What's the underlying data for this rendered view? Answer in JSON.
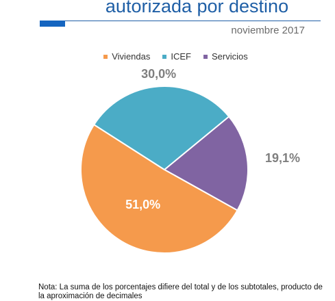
{
  "header": {
    "title": "autorizada por destino",
    "subtitle": "noviembre 2017"
  },
  "chart_data": {
    "type": "pie",
    "categories": [
      "Viviendas",
      "ICEF",
      "Servicios"
    ],
    "values": [
      51.0,
      30.0,
      19.1
    ],
    "value_labels": [
      "51,0%",
      "30,0%",
      "19,1%"
    ],
    "colors": [
      "#F59A4C",
      "#4BACC6",
      "#8064A2"
    ],
    "legend_position": "top"
  },
  "note": {
    "text": "Nota: La suma de los porcentajes difiere del total y de los subtotales, producto de la aproximación de decimales"
  }
}
